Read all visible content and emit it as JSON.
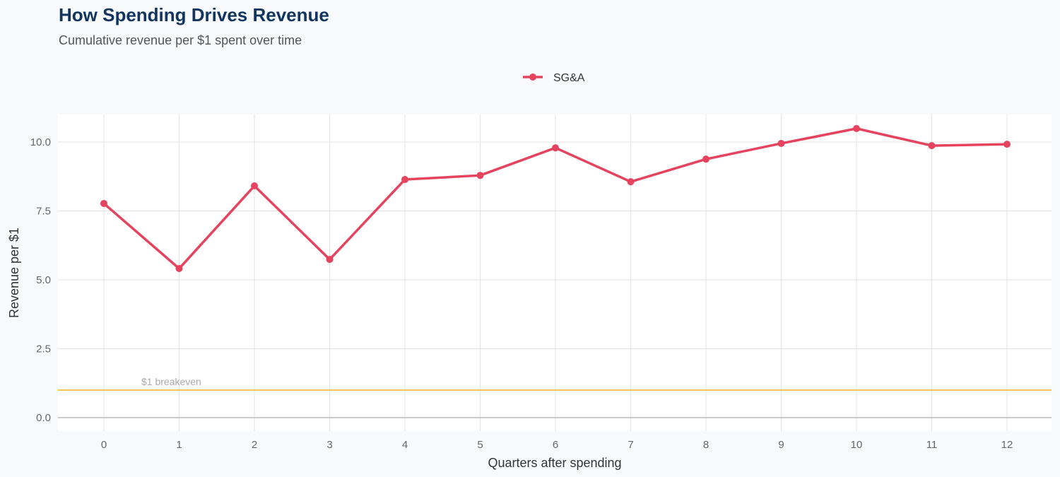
{
  "title": "How Spending Drives Revenue",
  "subtitle": "Cumulative revenue per $1 spent over time",
  "chart_data": {
    "type": "line",
    "title": "How Spending Drives Revenue",
    "subtitle": "Cumulative revenue per $1 spent over time",
    "xlabel": "Quarters after spending",
    "ylabel": "Revenue per $1",
    "x": [
      0,
      1,
      2,
      3,
      4,
      5,
      6,
      7,
      8,
      9,
      10,
      11,
      12
    ],
    "series": [
      {
        "name": "SG&A",
        "color": "#e5435e",
        "values": [
          7.77,
          5.41,
          8.41,
          5.74,
          8.64,
          8.79,
          9.79,
          8.56,
          9.38,
          9.95,
          10.49,
          9.87,
          9.92
        ]
      }
    ],
    "xticks": [
      "0",
      "1",
      "2",
      "3",
      "4",
      "5",
      "6",
      "7",
      "8",
      "9",
      "10",
      "11",
      "12"
    ],
    "yticks": [
      "0.0",
      "2.5",
      "5.0",
      "7.5",
      "10.0"
    ],
    "ylim": [
      -0.5,
      11.2
    ],
    "xlim": [
      -0.6,
      12.6
    ],
    "grid": true,
    "legend_position": "top",
    "reference_line": {
      "y": 1,
      "label": "$1 breakeven",
      "color": "#f7c560"
    }
  }
}
